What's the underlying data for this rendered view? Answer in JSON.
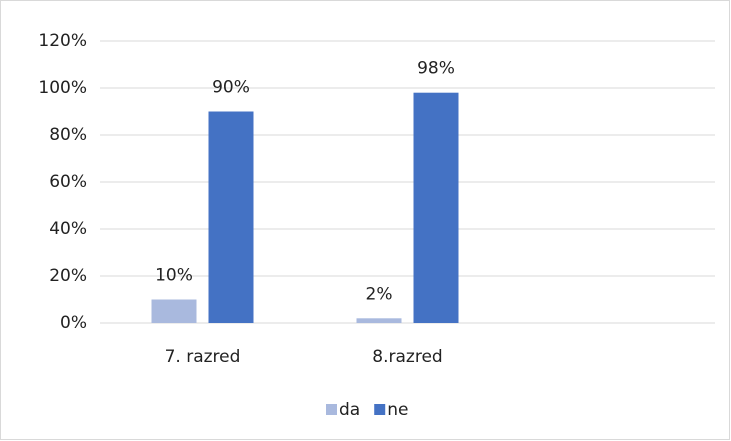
{
  "chart_data": {
    "type": "bar",
    "categories": [
      "7. razred",
      "8.razred",
      null
    ],
    "series": [
      {
        "name": "da",
        "color": "#a9b9de",
        "values": [
          10,
          2,
          null
        ],
        "value_labels": [
          "10%",
          "2%",
          null
        ]
      },
      {
        "name": "ne",
        "color": "#4472c4",
        "values": [
          90,
          98,
          null
        ],
        "value_labels": [
          "90%",
          "98%",
          null
        ]
      }
    ],
    "ylim": [
      0,
      120
    ],
    "yticks": [
      {
        "value": 0,
        "label": "0%"
      },
      {
        "value": 20,
        "label": "20%"
      },
      {
        "value": 40,
        "label": "40%"
      },
      {
        "value": 60,
        "label": "60%"
      },
      {
        "value": 80,
        "label": "80%"
      },
      {
        "value": 100,
        "label": "100%"
      },
      {
        "value": 120,
        "label": "120%"
      }
    ],
    "grid": true,
    "legend": "bottom"
  }
}
